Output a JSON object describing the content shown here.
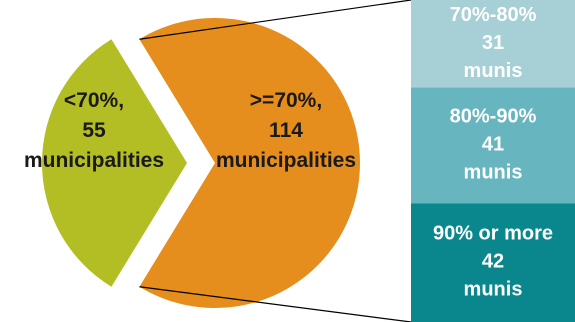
{
  "colors": {
    "under_slice": "#b3bd24",
    "over_slice": "#e58d1d",
    "band_70_80": "#a6d0d5",
    "band_80_90": "#67b5be",
    "band_90_plus": "#0a878d",
    "connector": "#000000"
  },
  "chart_data": {
    "type": "pie",
    "slices": [
      {
        "label_lines": [
          "<70%,",
          "55",
          "municipalities"
        ],
        "value": 55,
        "color": "#b3bd24"
      },
      {
        "label_lines": [
          ">=70%,",
          "114",
          "municipalities"
        ],
        "value": 114,
        "color": "#e58d1d"
      }
    ],
    "breakdown": {
      "type": "stacked-bar",
      "of_slice": ">=70%",
      "segments": [
        {
          "label_lines": [
            "70%-80%",
            "31",
            "munis"
          ],
          "value": 31,
          "color": "#a6d0d5"
        },
        {
          "label_lines": [
            "80%-90%",
            "41",
            "munis"
          ],
          "value": 41,
          "color": "#67b5be"
        },
        {
          "label_lines": [
            "90% or more",
            "42",
            "munis"
          ],
          "value": 42,
          "color": "#0a878d"
        }
      ]
    }
  }
}
